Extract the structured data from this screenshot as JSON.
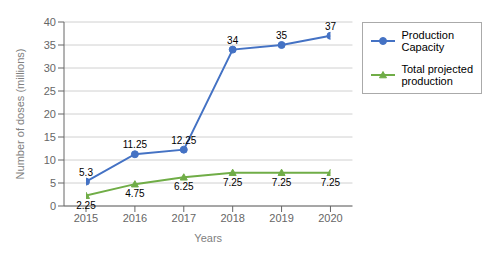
{
  "chart_data": {
    "type": "line",
    "x": [
      2015,
      2016,
      2017,
      2018,
      2019,
      2020
    ],
    "xlabel": "Years",
    "ylabel": "Number of doses (millions)",
    "xlim": [
      2015,
      2020
    ],
    "xticks": [
      2015,
      2016,
      2017,
      2018,
      2019,
      2020
    ],
    "ylim": [
      0,
      40
    ],
    "yticks": [
      0,
      5,
      10,
      15,
      20,
      25,
      30,
      35,
      40
    ],
    "grid": "y",
    "legend": "right",
    "data_labels": true,
    "series": [
      {
        "name": "Production\nCapacity",
        "color": "#4472C4",
        "marker": "circle",
        "values": [
          5.3,
          11.25,
          12.25,
          34,
          35,
          37
        ]
      },
      {
        "name": "Total projected\nproduction",
        "color": "#70AD47",
        "marker": "triangle",
        "values": [
          2.25,
          4.75,
          6.25,
          7.25,
          7.25,
          7.25
        ]
      }
    ]
  }
}
